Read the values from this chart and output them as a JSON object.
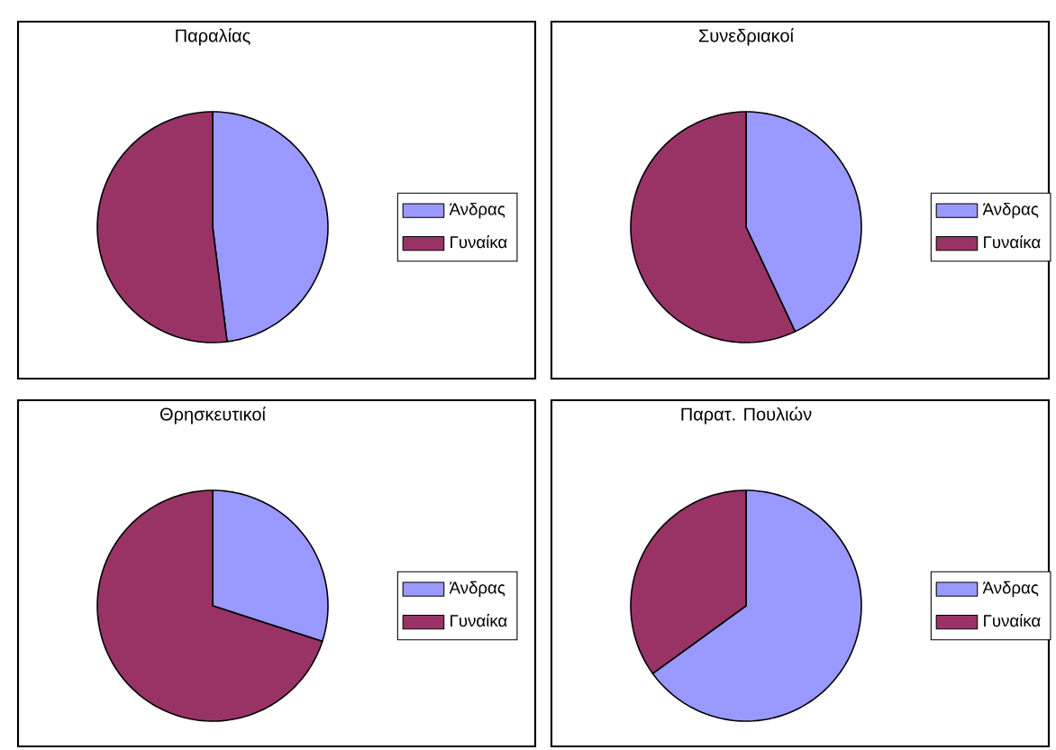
{
  "chart_data": [
    {
      "type": "pie",
      "title": "Παραλίας",
      "categories": [
        "Άνδρας",
        "Γυναίκα"
      ],
      "values": [
        48,
        52
      ],
      "colors": [
        "#9999ff",
        "#993366"
      ],
      "legend": "right"
    },
    {
      "type": "pie",
      "title": "Συνεδριακοί",
      "categories": [
        "Άνδρας",
        "Γυναίκα"
      ],
      "values": [
        43,
        57
      ],
      "colors": [
        "#9999ff",
        "#993366"
      ],
      "legend": "right"
    },
    {
      "type": "pie",
      "title": "Θρησκευτικοί",
      "categories": [
        "Άνδρας",
        "Γυναίκα"
      ],
      "values": [
        30,
        70
      ],
      "colors": [
        "#9999ff",
        "#993366"
      ],
      "legend": "right"
    },
    {
      "type": "pie",
      "title": "Παρατ. Πουλιών",
      "categories": [
        "Άνδρας",
        "Γυναίκα"
      ],
      "values": [
        65,
        35
      ],
      "colors": [
        "#9999ff",
        "#993366"
      ],
      "legend": "right"
    }
  ]
}
